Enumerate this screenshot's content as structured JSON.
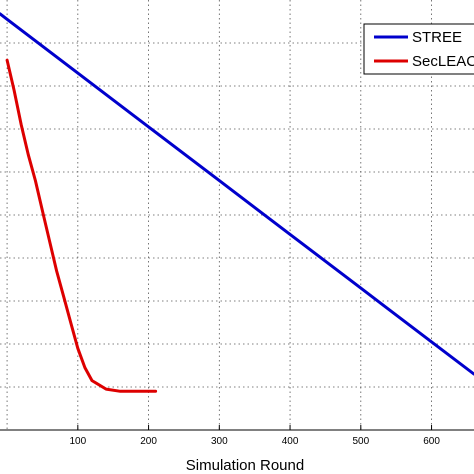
{
  "chart_data": {
    "type": "line",
    "title": "",
    "xlabel": "Simulation Round",
    "ylabel": "",
    "xlim": [
      -10,
      660
    ],
    "ylim": [
      0,
      10
    ],
    "x_ticks": [
      100,
      200,
      300,
      400,
      500,
      600
    ],
    "grid": true,
    "legend_placement": "top-right",
    "series": [
      {
        "name": "STREE",
        "color": "#0000cc",
        "x": [
          -10,
          0,
          100,
          200,
          300,
          400,
          500,
          600,
          660
        ],
        "y": [
          9.68,
          9.55,
          8.3,
          7.05,
          5.8,
          4.55,
          3.3,
          2.05,
          1.3
        ]
      },
      {
        "name": "SecLEACH",
        "color": "#dd0000",
        "x": [
          0,
          10,
          20,
          30,
          40,
          50,
          60,
          70,
          80,
          90,
          100,
          110,
          120,
          140,
          160,
          180,
          200,
          210
        ],
        "y": [
          8.6,
          7.9,
          7.1,
          6.4,
          5.8,
          5.1,
          4.4,
          3.7,
          3.1,
          2.5,
          1.9,
          1.45,
          1.15,
          0.95,
          0.9,
          0.9,
          0.9,
          0.9
        ]
      }
    ]
  }
}
